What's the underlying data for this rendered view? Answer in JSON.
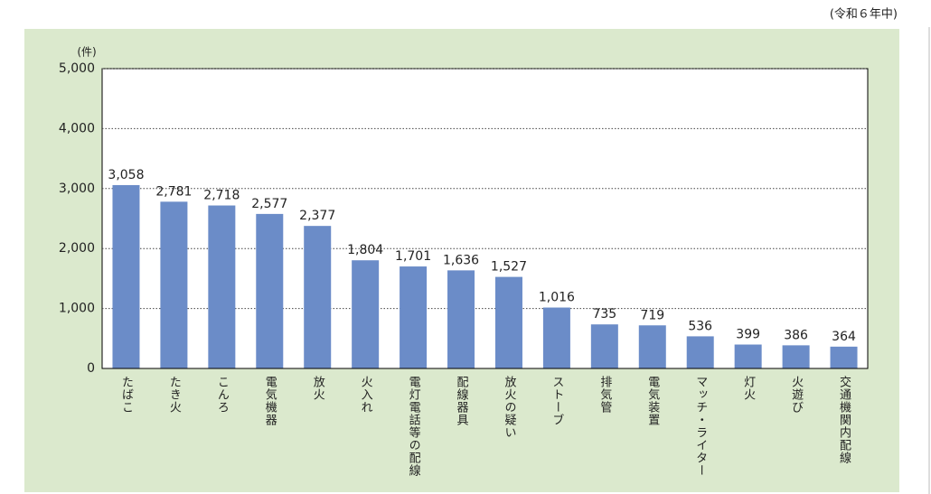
{
  "chart_data": {
    "type": "bar",
    "subtitle": "(令和６年中)",
    "y_label": "(件)",
    "categories": [
      "たばこ",
      "たき火",
      "こんろ",
      "電気機器",
      "放火",
      "火入れ",
      "電灯電話等の配線",
      "配線器具",
      "放火の疑い",
      "ストーブ",
      "排気管",
      "電気装置",
      "マッチ・ライター",
      "灯火",
      "火遊び",
      "交通機関内配線"
    ],
    "values": [
      3058,
      2781,
      2718,
      2577,
      2377,
      1804,
      1701,
      1636,
      1527,
      1016,
      735,
      719,
      536,
      399,
      386,
      364
    ],
    "value_labels": [
      "3,058",
      "2,781",
      "2,718",
      "2,577",
      "2,377",
      "1,804",
      "1,701",
      "1,636",
      "1,527",
      "1,016",
      "735",
      "719",
      "536",
      "399",
      "386",
      "364"
    ],
    "color": "#6b8cc8",
    "ylim": [
      0,
      5000
    ],
    "yticks": [
      0,
      {
        "value": 1000,
        "label": "1,000"
      },
      {
        "value": 2000,
        "label": "2,000"
      },
      {
        "value": 3000,
        "label": "3,000"
      },
      {
        "value": 4000,
        "label": "4,000"
      },
      {
        "value": 5000,
        "label": "5,000"
      }
    ],
    "grid": true
  }
}
